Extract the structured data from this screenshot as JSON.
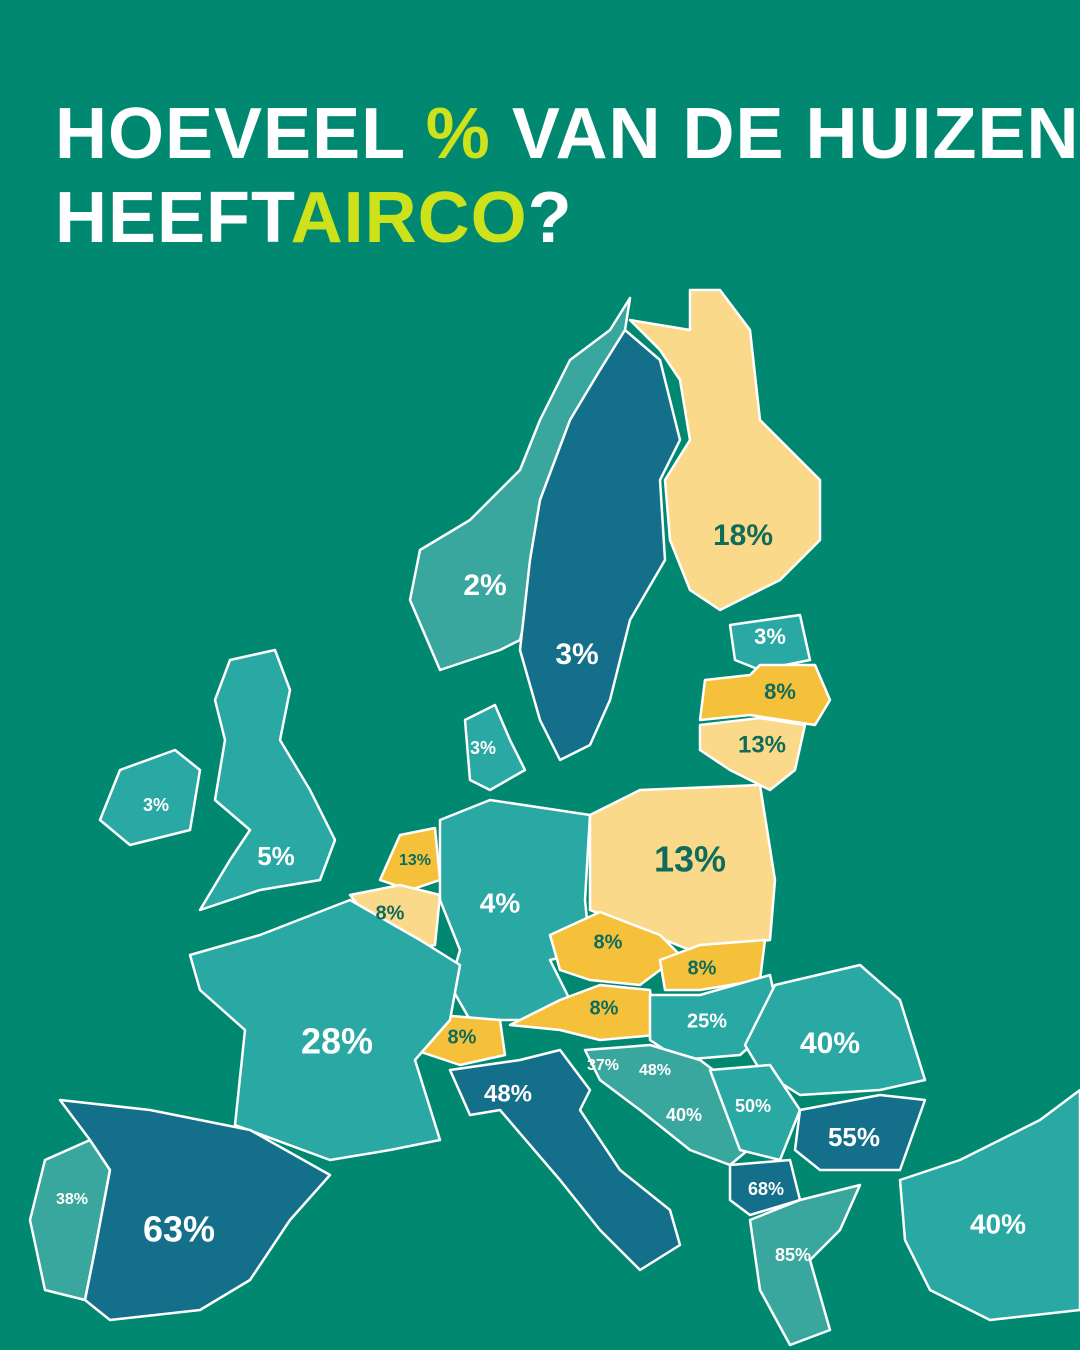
{
  "title": {
    "line1_start": "HOEVEEL ",
    "line1_highlight": "%",
    "line1_end": " VAN DE HUIZEN",
    "line2_start": "HEEFT",
    "line2_highlight": "AIRCO",
    "line2_end": "?"
  },
  "labels": [
    "2%",
    "3%",
    "18%",
    "3%",
    "8%",
    "13%",
    "3%",
    "3%",
    "5%",
    "13%",
    "8%",
    "4%",
    "13%",
    "8%",
    "8%",
    "8%",
    "8%",
    "25%",
    "40%",
    "28%",
    "37%",
    "48%",
    "48%",
    "40%",
    "50%",
    "55%",
    "68%",
    "40%",
    "38%",
    "63%",
    "85%"
  ]
}
